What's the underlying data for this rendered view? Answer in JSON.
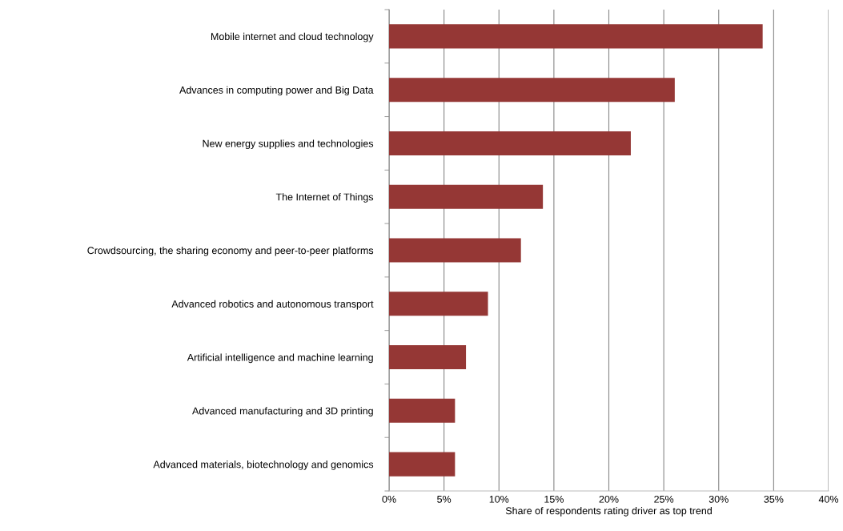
{
  "chart_data": {
    "type": "bar",
    "orientation": "horizontal",
    "xlabel": "Share of respondents rating driver as top trend",
    "categories": [
      "Mobile internet and cloud technology",
      "Advances in computing power and Big Data",
      "New energy supplies and technologies",
      "The Internet of Things",
      "Crowdsourcing, the sharing economy and peer-to-peer platforms",
      "Advanced robotics and autonomous transport",
      "Artificial intelligence and machine learning",
      "Advanced manufacturing and 3D printing",
      "Advanced materials, biotechnology and genomics"
    ],
    "values": [
      34,
      26,
      22,
      14,
      12,
      9,
      7,
      6,
      6
    ],
    "color": "#953735",
    "xlim": [
      0,
      40
    ],
    "xticks": [
      {
        "value": 0,
        "label": "0%"
      },
      {
        "value": 5,
        "label": "5%"
      },
      {
        "value": 10,
        "label": "10%"
      },
      {
        "value": 15,
        "label": "15%"
      },
      {
        "value": 20,
        "label": "20%"
      },
      {
        "value": 25,
        "label": "25%"
      },
      {
        "value": 30,
        "label": "30%"
      },
      {
        "value": 35,
        "label": "35%"
      },
      {
        "value": 40,
        "label": "40%"
      }
    ],
    "grid": "x"
  }
}
